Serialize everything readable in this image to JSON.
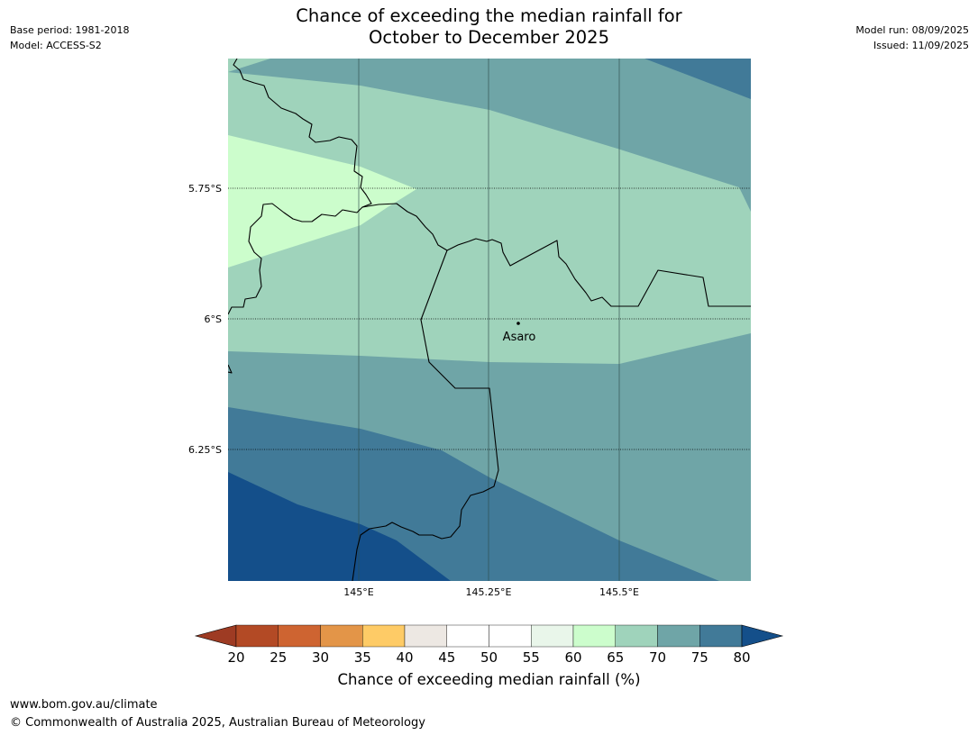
{
  "title_line1": "Chance of exceeding the median rainfall for",
  "title_line2": "October to December 2025",
  "meta_left": {
    "base_period": "Base period: 1981-2018",
    "model": "Model: ACCESS-S2"
  },
  "meta_right": {
    "model_run": "Model run: 08/09/2025",
    "issued": "Issued: 11/09/2025"
  },
  "map": {
    "lat_labels": [
      "5.75°S",
      "6°S",
      "6.25°S"
    ],
    "lon_labels": [
      "145°E",
      "145.25°E",
      "145.5°E"
    ],
    "place_label": "Asaro",
    "colors": {
      "band_60_65": "#ccfdcc",
      "band_65_70": "#9fd3bb",
      "band_70_75": "#6fa5a7",
      "band_75_80": "#417a98",
      "band_80_plus": "#144f8a"
    }
  },
  "colorbar": {
    "ticks": [
      "20",
      "25",
      "30",
      "35",
      "40",
      "45",
      "50",
      "55",
      "60",
      "65",
      "70",
      "75",
      "80"
    ],
    "colors": [
      "#9e3b23",
      "#b34a25",
      "#ce6431",
      "#e39548",
      "#fecb66",
      "#ede8e3",
      "#ffffff",
      "#ffffff",
      "#e9f6ea",
      "#ccfdcc",
      "#9fd3bb",
      "#6fa5a7",
      "#417a98",
      "#144f8a"
    ],
    "label": "Chance of exceeding median rainfall (%)"
  },
  "footer": {
    "url": "www.bom.gov.au/climate",
    "copyright": "© Commonwealth of Australia 2025, Australian Bureau of Meteorology"
  }
}
